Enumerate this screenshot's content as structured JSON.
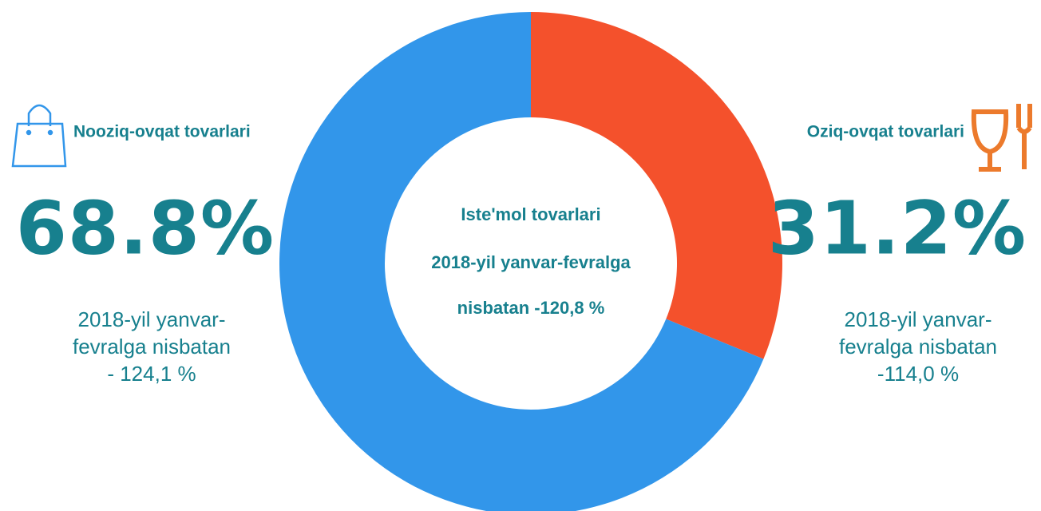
{
  "chart_data": {
    "type": "pie",
    "donut": true,
    "title": "Iste'mol tovarlari",
    "center_lines": [
      "2018-yil yanvar-fevralga",
      "nisbatan -120,8 %"
    ],
    "categories": [
      "Oziq-ovqat tovarlari",
      "Nooziq-ovqat tovarlari"
    ],
    "values": [
      31.2,
      68.8
    ],
    "value_labels": [
      "31.2%",
      "68.8%"
    ],
    "colors": [
      "#f4512c",
      "#3296ea"
    ],
    "notes": [
      [
        "2018-yil yanvar-",
        "fevralga nisbatan",
        "-114,0 %"
      ],
      [
        "2018-yil yanvar-",
        "fevralga nisbatan",
        "- 124,1 %"
      ]
    ]
  }
}
